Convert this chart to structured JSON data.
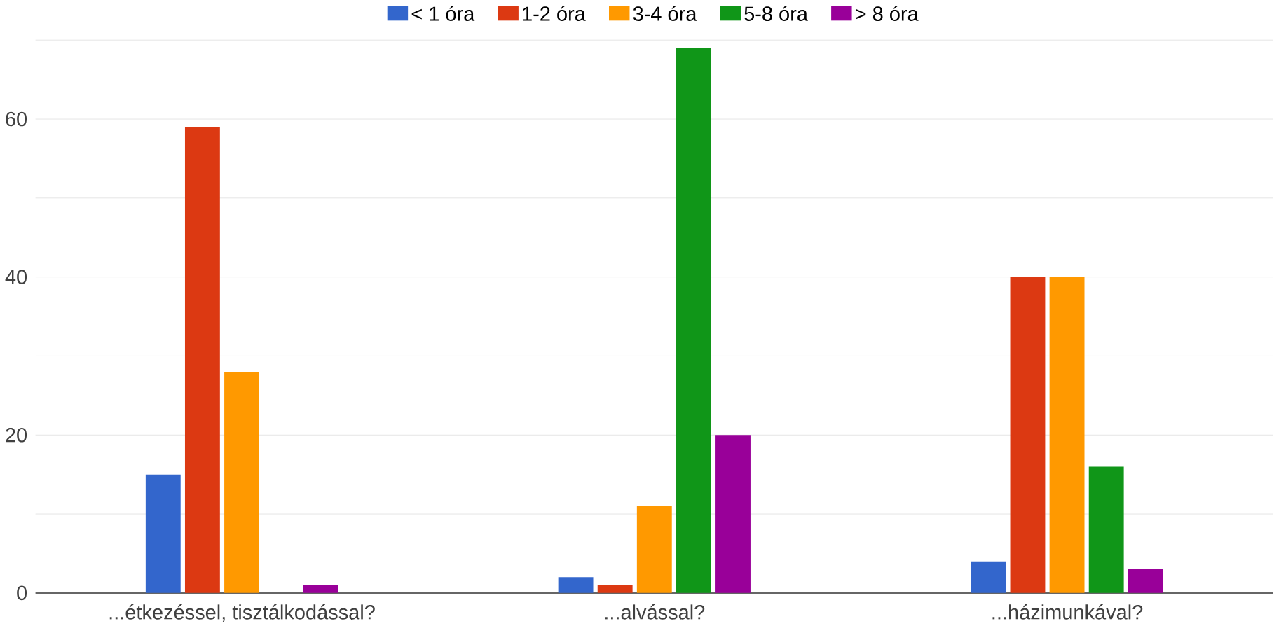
{
  "chart_data": {
    "type": "bar",
    "categories": [
      "...étkezéssel, tisztálkodással?",
      "...alvással?",
      "...házimunkával?"
    ],
    "series": [
      {
        "name": "< 1 óra",
        "color": "#3366cc",
        "values": [
          15,
          2,
          4
        ]
      },
      {
        "name": "1-2 óra",
        "color": "#dc3912",
        "values": [
          59,
          1,
          40
        ]
      },
      {
        "name": "3-4 óra",
        "color": "#ff9900",
        "values": [
          28,
          11,
          40
        ]
      },
      {
        "name": "5-8 óra",
        "color": "#109618",
        "values": [
          0,
          69,
          16
        ]
      },
      {
        "name": "> 8 óra",
        "color": "#990099",
        "values": [
          1,
          20,
          3
        ]
      }
    ],
    "ylim": [
      0,
      70
    ],
    "yticks": [
      0,
      {
        "value": 10,
        "label": null
      },
      20,
      {
        "value": 30,
        "label": null
      },
      40,
      {
        "value": 50,
        "label": null
      },
      60,
      {
        "value": 70,
        "label": null
      }
    ],
    "grid": "y",
    "legend": "top"
  }
}
